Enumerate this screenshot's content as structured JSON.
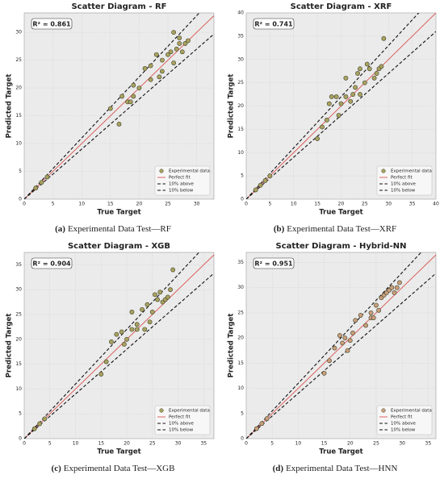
{
  "chart_data": [
    {
      "type": "scatter",
      "title": "Scatter Diagram - RF",
      "label": "(a)",
      "caption": "Experimental Data Test—RF",
      "xlabel": "True Target",
      "ylabel": "Predicted Target",
      "annotation": "R² = 0.861",
      "xlim": [
        0,
        33
      ],
      "ylim": [
        0,
        33.5
      ],
      "xticks": [
        0,
        5,
        10,
        15,
        20,
        25,
        30
      ],
      "yticks": [
        0,
        5,
        10,
        15,
        20,
        25,
        30
      ],
      "grid": true,
      "legend": "lower right",
      "series": [
        {
          "name": "Experimental data",
          "type": "scatter",
          "color": "#a9a35f",
          "x": [
            2,
            3,
            4,
            15,
            16.5,
            17,
            18,
            18.5,
            19,
            19,
            20,
            21,
            22,
            23,
            23.5,
            24,
            24,
            25,
            25.5,
            26,
            26.5,
            27,
            27,
            27.5,
            28,
            28.5,
            26,
            22
          ],
          "values": [
            2,
            3,
            4,
            16.3,
            13.5,
            18.5,
            17.5,
            17.5,
            18.5,
            20.5,
            20,
            23.5,
            24,
            26,
            22,
            23,
            25,
            26,
            26.5,
            30,
            27,
            28,
            29,
            26.5,
            28,
            28.5,
            24.5,
            21.5
          ]
        },
        {
          "name": "Perfect fit",
          "type": "line",
          "line_style": "solid",
          "color": "#d9534f",
          "x": [
            0,
            33
          ],
          "values": [
            0,
            33
          ]
        },
        {
          "name": "10% above",
          "type": "line",
          "line_style": "dashed",
          "color": "#111111",
          "x": [
            0,
            33
          ],
          "values": [
            0,
            36.3
          ]
        },
        {
          "name": "10% below",
          "type": "line",
          "line_style": "dashed",
          "color": "#111111",
          "x": [
            0,
            33
          ],
          "values": [
            0,
            29.7
          ]
        }
      ]
    },
    {
      "type": "scatter",
      "title": "Scatter Diagram - XRF",
      "label": "(b)",
      "caption": "Experimental Data Test—XRF",
      "xlabel": "True Target",
      "ylabel": "Predicted Target",
      "annotation": "R² = 0.741",
      "xlim": [
        0,
        40
      ],
      "ylim": [
        0,
        40
      ],
      "xticks": [
        0,
        5,
        10,
        15,
        20,
        25,
        30,
        35,
        40
      ],
      "yticks": [
        0,
        5,
        10,
        15,
        20,
        25,
        30,
        35,
        40
      ],
      "grid": true,
      "legend": "lower right",
      "series": [
        {
          "name": "Experimental data",
          "type": "scatter",
          "color": "#a9a35f",
          "x": [
            2,
            3,
            4,
            5,
            15,
            16,
            17,
            17.5,
            18,
            19,
            19.5,
            20,
            21,
            21,
            22,
            22.5,
            23,
            23.5,
            24,
            25,
            25.5,
            26,
            27,
            27.5,
            28,
            28.5,
            29,
            24
          ],
          "values": [
            2,
            3,
            4,
            5,
            13,
            15.5,
            17,
            20.5,
            22,
            22,
            18,
            20.5,
            22,
            26,
            21,
            22.5,
            24,
            27,
            22.5,
            25,
            29,
            28,
            26,
            27,
            28,
            28.5,
            34.5,
            28
          ]
        },
        {
          "name": "Perfect fit",
          "type": "line",
          "line_style": "solid",
          "color": "#d9534f",
          "x": [
            0,
            40
          ],
          "values": [
            0,
            40
          ]
        },
        {
          "name": "10% above",
          "type": "line",
          "line_style": "dashed",
          "color": "#111111",
          "x": [
            0,
            40
          ],
          "values": [
            0,
            44
          ]
        },
        {
          "name": "10% below",
          "type": "line",
          "line_style": "dashed",
          "color": "#111111",
          "x": [
            0,
            40
          ],
          "values": [
            0,
            36
          ]
        }
      ]
    },
    {
      "type": "scatter",
      "title": "Scatter Diagram - XGB",
      "label": "(c)",
      "caption": "Experimental Data Test—XGB",
      "xlabel": "True Target",
      "ylabel": "Predicted Target",
      "annotation": "R² = 0.904",
      "xlim": [
        0,
        37
      ],
      "ylim": [
        0,
        37.5
      ],
      "xticks": [
        0,
        5,
        10,
        15,
        20,
        25,
        30,
        35
      ],
      "yticks": [
        0,
        5,
        10,
        15,
        20,
        25,
        30,
        35
      ],
      "grid": true,
      "legend": "lower right",
      "series": [
        {
          "name": "Experimental data",
          "type": "scatter",
          "color": "#a9a35f",
          "x": [
            2,
            3,
            4,
            15,
            16,
            17,
            18,
            19,
            19.5,
            20,
            21,
            21,
            22,
            23,
            23.5,
            24,
            24.5,
            25,
            25.5,
            26,
            26.5,
            27,
            27.5,
            28,
            28.5,
            29,
            22
          ],
          "values": [
            2,
            3,
            4,
            13,
            15.5,
            19.5,
            21,
            21.5,
            19,
            20,
            22,
            25.5,
            23,
            26,
            22,
            27,
            23.5,
            25.5,
            29,
            28,
            29.5,
            27.5,
            28,
            28.5,
            30,
            34,
            22
          ]
        },
        {
          "name": "Perfect fit",
          "type": "line",
          "line_style": "solid",
          "color": "#d9534f",
          "x": [
            0,
            37
          ],
          "values": [
            0,
            37
          ]
        },
        {
          "name": "10% above",
          "type": "line",
          "line_style": "dashed",
          "color": "#111111",
          "x": [
            0,
            37
          ],
          "values": [
            0,
            40.7
          ]
        },
        {
          "name": "10% below",
          "type": "line",
          "line_style": "dashed",
          "color": "#111111",
          "x": [
            0,
            37
          ],
          "values": [
            0,
            33.3
          ]
        }
      ]
    },
    {
      "type": "scatter",
      "title": "Scatter Diagram - Hybrid-NN",
      "label": "(d)",
      "caption": "Experimental Data Test—HNN",
      "xlabel": "True Target",
      "ylabel": "Predicted Target",
      "annotation": "R² = 0.951",
      "xlim": [
        0,
        36.5
      ],
      "ylim": [
        0,
        37
      ],
      "xticks": [
        0,
        5,
        10,
        15,
        20,
        25,
        30,
        35
      ],
      "yticks": [
        0,
        5,
        10,
        15,
        20,
        25,
        30,
        35
      ],
      "grid": true,
      "legend": "lower right",
      "series": [
        {
          "name": "Experimental data",
          "type": "scatter",
          "color": "#c9a07a",
          "x": [
            2,
            3,
            4,
            15,
            16,
            17,
            18,
            18.5,
            19,
            19.5,
            20,
            20.5,
            21,
            22,
            23,
            24,
            24,
            25,
            25.5,
            26,
            26.5,
            27,
            27.5,
            28,
            28.5,
            29,
            29.5,
            24.5
          ],
          "values": [
            2,
            3,
            4,
            13,
            15.5,
            18,
            20.5,
            19,
            20,
            17.5,
            19.5,
            21,
            23.5,
            24.5,
            22.5,
            25,
            24,
            26.5,
            25.5,
            28,
            28.5,
            29,
            29.5,
            30,
            29,
            30,
            31,
            24
          ]
        },
        {
          "name": "Perfect fit",
          "type": "line",
          "line_style": "solid",
          "color": "#d9534f",
          "x": [
            0,
            36.5
          ],
          "values": [
            0,
            36.5
          ]
        },
        {
          "name": "10% above",
          "type": "line",
          "line_style": "dashed",
          "color": "#111111",
          "x": [
            0,
            36.5
          ],
          "values": [
            0,
            40.15
          ]
        },
        {
          "name": "10% below",
          "type": "line",
          "line_style": "dashed",
          "color": "#111111",
          "x": [
            0,
            36.5
          ],
          "values": [
            0,
            32.85
          ]
        }
      ]
    }
  ]
}
